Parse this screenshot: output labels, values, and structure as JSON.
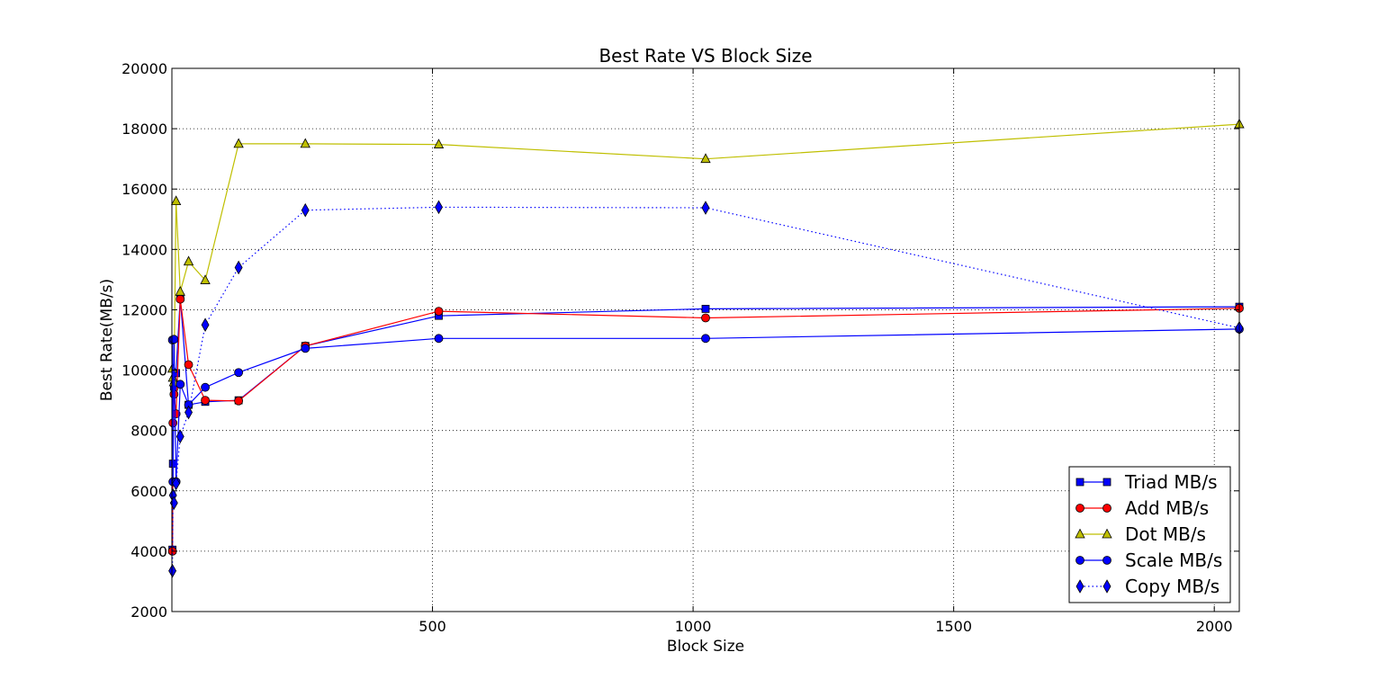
{
  "chart_data": {
    "type": "line",
    "title": "Best Rate VS Block Size",
    "xlabel": "Block Size",
    "ylabel": "Best Rate(MB/s)",
    "xlim": [
      0,
      2048
    ],
    "ylim": [
      2000,
      20000
    ],
    "xticks": [
      500,
      1000,
      1500,
      2000
    ],
    "yticks": [
      2000,
      4000,
      6000,
      8000,
      10000,
      12000,
      14000,
      16000,
      18000,
      20000
    ],
    "grid": true,
    "legend_position": "lower-right",
    "x": [
      1,
      2,
      4,
      8,
      16,
      32,
      64,
      128,
      256,
      512,
      1024,
      2048
    ],
    "series": [
      {
        "name": "Triad MB/s",
        "color": "#0000ff",
        "marker": "square",
        "linestyle": "solid",
        "values": [
          4050,
          6900,
          9450,
          9900,
          12400,
          8850,
          8950,
          9000,
          10800,
          11800,
          12030,
          12100
        ]
      },
      {
        "name": "Add MB/s",
        "color": "#ff0000",
        "marker": "circle",
        "linestyle": "solid",
        "values": [
          4000,
          8250,
          9200,
          8550,
          12350,
          10180,
          9000,
          8980,
          10800,
          11950,
          11730,
          12050
        ]
      },
      {
        "name": "Dot MB/s",
        "color": "#bfbf00",
        "marker": "triangle",
        "linestyle": "solid",
        "values": [
          10050,
          9750,
          9600,
          15600,
          12600,
          13600,
          12980,
          17500,
          17500,
          17480,
          17000,
          18150
        ]
      },
      {
        "name": "Scale MB/s",
        "color": "#0000ff",
        "marker": "circle",
        "linestyle": "solid",
        "values": [
          11000,
          6300,
          11020,
          6300,
          9530,
          8850,
          9430,
          9920,
          10720,
          11050,
          11050,
          11360
        ]
      },
      {
        "name": "Copy MB/s",
        "color": "#0000ff",
        "marker": "diamond",
        "linestyle": "dotted",
        "values": [
          3350,
          5850,
          5600,
          6250,
          7800,
          8600,
          11500,
          13400,
          15300,
          15400,
          15380,
          11400
        ]
      }
    ]
  }
}
